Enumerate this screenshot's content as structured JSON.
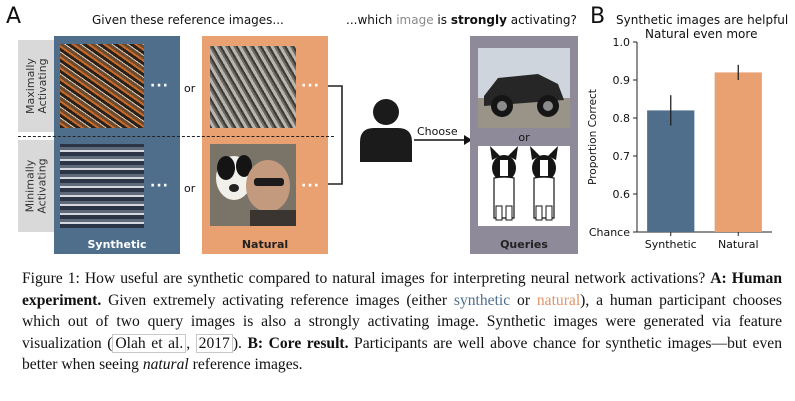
{
  "panel_a": {
    "letter": "A",
    "header_left": "Given these reference images...",
    "header_right_pre": "...which ",
    "header_right_image": "image",
    "header_right_mid": " is ",
    "header_right_bold": "strongly",
    "header_right_post": " activating?",
    "row_label_top": "Maximally\nActivating",
    "row_label_bottom": "Minimally\nActivating",
    "dots": "···",
    "or_label": "or",
    "choose_label": "Choose",
    "query_or": "or",
    "frame_synthetic": "Synthetic",
    "frame_natural": "Natural",
    "frame_queries": "Queries"
  },
  "panel_b": {
    "letter": "B",
    "title_line1": "Synthetic images are helpful",
    "title_line2": "Natural even more"
  },
  "colors": {
    "synthetic": "#4f6e8c",
    "natural": "#e9a172",
    "queries": "#8f8a9a",
    "label_bg": "#d9d9d9"
  },
  "chart_data": {
    "type": "bar",
    "title": "Synthetic images are helpful",
    "subtitle": "Natural even more",
    "categories": [
      "Synthetic",
      "Natural"
    ],
    "values": [
      0.82,
      0.92
    ],
    "error_low": [
      0.78,
      0.9
    ],
    "error_high": [
      0.86,
      0.94
    ],
    "ylabel": "Proportion Correct",
    "ylim": [
      0.5,
      1.0
    ],
    "yticks": [
      0.5,
      0.6,
      0.7,
      0.8,
      0.9,
      1.0
    ],
    "ytick_labels": [
      "Chance",
      "0.6",
      "0.7",
      "0.8",
      "0.9",
      "1.0"
    ],
    "bar_colors": [
      "#4f6e8c",
      "#e9a172"
    ]
  },
  "caption": {
    "fig": "Figure 1:",
    "t1": " How useful are synthetic compared to natural images for interpreting neural network activations? ",
    "a_bold": "A: Human experiment.",
    "t2": " Given extremely activating reference images (either ",
    "synthetic": "synthetic",
    "t3": " or ",
    "natural": "natural",
    "t4": "), a human participant chooses which out of two query images is also a strongly activating image. Synthetic images were generated via feature visualization (",
    "ref_author": "Olah et al.",
    "ref_sep": ", ",
    "ref_year": "2017",
    "t5": "). ",
    "b_bold": "B: Core result.",
    "t6": " Participants are well above chance for synthetic images—but even better when seeing ",
    "natural_italic": "natural",
    "t7": " reference images."
  }
}
